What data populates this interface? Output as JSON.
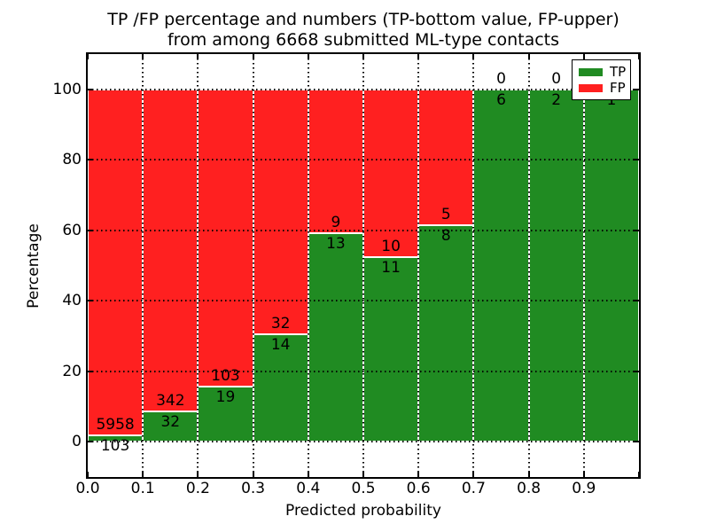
{
  "title": {
    "line1": "TP /FP percentage and numbers (TP-bottom value, FP-upper)",
    "line2": "from among 6668 submitted ML-type contacts"
  },
  "axes": {
    "xlabel": "Predicted probability",
    "ylabel": "Percentage",
    "x_tick_labels": [
      "0.0",
      "0.1",
      "0.2",
      "0.3",
      "0.4",
      "0.5",
      "0.6",
      "0.7",
      "0.8",
      "0.9"
    ],
    "y_tick_labels": [
      "0",
      "20",
      "40",
      "60",
      "80",
      "100"
    ],
    "y_tick_values": [
      0,
      20,
      40,
      60,
      80,
      100
    ],
    "xlim": [
      0.0,
      1.0
    ],
    "ylim": [
      -10,
      110
    ]
  },
  "legend": {
    "position": "upper right",
    "items": [
      {
        "label": "TP",
        "color": "#208b22"
      },
      {
        "label": "FP",
        "color": "#ff2020"
      }
    ]
  },
  "colors": {
    "tp": "#208b22",
    "fp": "#ff2020",
    "grid": "#000000",
    "background": "#ffffff"
  },
  "chart_data": {
    "type": "bar",
    "stacked": true,
    "normalized_to_percent": true,
    "title": "TP /FP percentage and numbers (TP-bottom value, FP-upper) from among 6668 submitted ML-type contacts",
    "xlabel": "Predicted probability",
    "ylabel": "Percentage",
    "total_contacts": 6668,
    "bin_edges": [
      0.0,
      0.1,
      0.2,
      0.3,
      0.4,
      0.5,
      0.6,
      0.7,
      0.8,
      0.9,
      1.0
    ],
    "series": [
      {
        "name": "TP",
        "color": "#208b22",
        "counts": [
          103,
          32,
          19,
          14,
          13,
          11,
          8,
          6,
          2,
          1
        ]
      },
      {
        "name": "FP",
        "color": "#ff2020",
        "counts": [
          5958,
          342,
          103,
          32,
          9,
          10,
          5,
          0,
          0,
          0
        ]
      }
    ],
    "tp_percent_per_bin": [
      1.7,
      8.6,
      15.6,
      30.4,
      59.1,
      52.4,
      61.5,
      100.0,
      100.0,
      100.0
    ],
    "grid": true,
    "gridstyle": "dotted",
    "legend_position": "upper right",
    "ylim": [
      -10,
      110
    ]
  }
}
